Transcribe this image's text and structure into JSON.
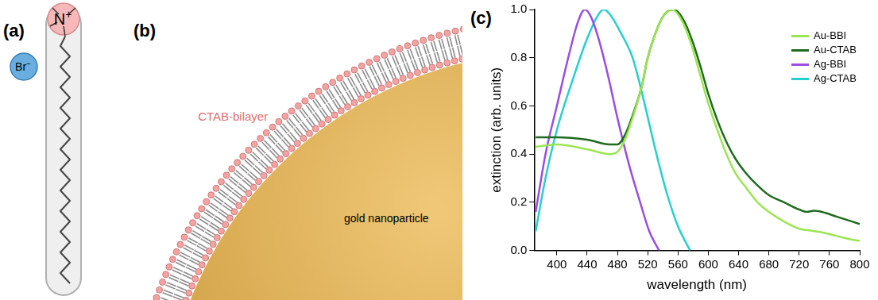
{
  "diagram": {
    "a": {
      "label": "(a)",
      "cation": {
        "atom": "N",
        "charge": "+"
      },
      "anion": {
        "atom": "Br",
        "charge": "−"
      }
    },
    "b": {
      "label": "(b)",
      "bilayer_label": "CTAB-bilayer",
      "particle_label": "gold nanoparticle"
    }
  },
  "chart_data": {
    "panel_label": "(c)",
    "type": "line",
    "x_label": "wavelength (nm)",
    "y_label": "extinction (arb. units)",
    "xlim": [
      370,
      800
    ],
    "xticks": [
      400,
      440,
      480,
      520,
      560,
      600,
      640,
      680,
      720,
      760,
      800
    ],
    "ylim": [
      0,
      1
    ],
    "yticks": [
      {
        "value": 0,
        "label": "0.0"
      },
      0.2,
      0.4,
      0.6,
      0.8,
      {
        "value": 1,
        "label": "1.0"
      }
    ],
    "grid": false,
    "legend": "top-right",
    "series": [
      {
        "name": "Au-BBI",
        "color": "#9be552",
        "x": [
          372,
          400,
          440,
          470,
          480,
          490,
          500,
          512,
          520,
          530,
          540,
          552,
          560,
          570,
          580,
          590,
          600,
          612,
          624,
          636,
          650,
          665,
          680,
          700,
          720,
          730,
          740,
          750,
          770,
          790,
          800
        ],
        "values": [
          0.43,
          0.44,
          0.42,
          0.4,
          0.41,
          0.46,
          0.55,
          0.68,
          0.8,
          0.9,
          0.97,
          1.0,
          0.98,
          0.92,
          0.83,
          0.72,
          0.61,
          0.5,
          0.4,
          0.32,
          0.26,
          0.2,
          0.16,
          0.12,
          0.09,
          0.085,
          0.08,
          0.075,
          0.06,
          0.045,
          0.04
        ]
      },
      {
        "name": "Au-CTAB",
        "color": "#1f6b1f",
        "x": [
          372,
          400,
          440,
          470,
          480,
          490,
          500,
          512,
          520,
          530,
          540,
          552,
          560,
          570,
          580,
          590,
          600,
          612,
          624,
          636,
          650,
          665,
          680,
          700,
          720,
          730,
          740,
          750,
          770,
          790,
          800
        ],
        "values": [
          0.47,
          0.47,
          0.46,
          0.44,
          0.44,
          0.48,
          0.56,
          0.68,
          0.8,
          0.9,
          0.97,
          1.0,
          0.99,
          0.94,
          0.86,
          0.76,
          0.65,
          0.54,
          0.45,
          0.38,
          0.32,
          0.27,
          0.23,
          0.2,
          0.17,
          0.16,
          0.165,
          0.16,
          0.14,
          0.12,
          0.11
        ]
      },
      {
        "name": "Ag-BBI",
        "color": "#9b4de0",
        "x": [
          372,
          385,
          400,
          415,
          428,
          437,
          445,
          455,
          468,
          480,
          495,
          510,
          522,
          535
        ],
        "values": [
          0.16,
          0.4,
          0.6,
          0.8,
          0.95,
          1.0,
          0.97,
          0.88,
          0.72,
          0.55,
          0.36,
          0.2,
          0.08,
          0.0
        ]
      },
      {
        "name": "Ag-CTAB",
        "color": "#26cfcf",
        "x": [
          372,
          385,
          400,
          420,
          440,
          455,
          462,
          470,
          485,
          500,
          515,
          530,
          545,
          560,
          576
        ],
        "values": [
          0.08,
          0.3,
          0.5,
          0.7,
          0.88,
          0.98,
          1.0,
          0.98,
          0.9,
          0.8,
          0.62,
          0.42,
          0.24,
          0.1,
          0.0
        ]
      }
    ]
  }
}
